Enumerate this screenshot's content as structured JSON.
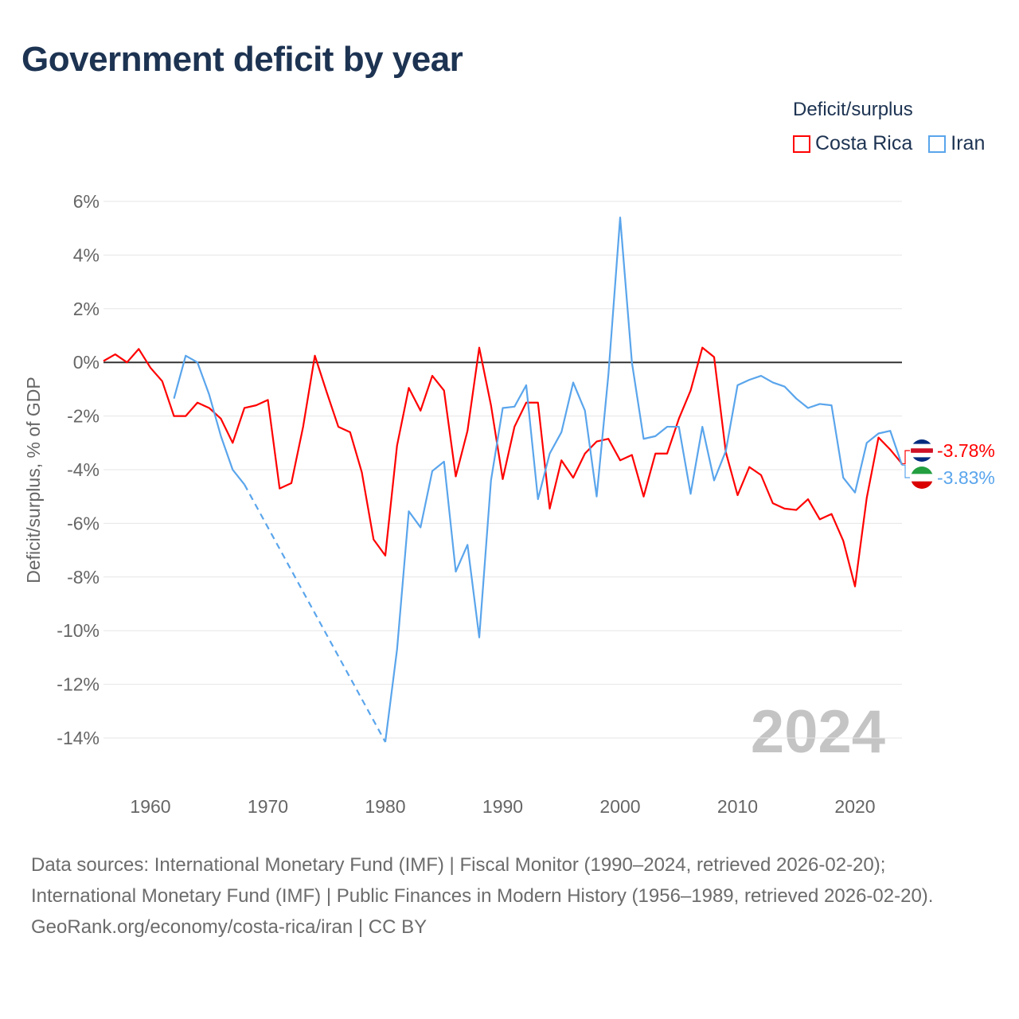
{
  "title": "Government deficit by year",
  "legend": {
    "title": "Deficit/surplus",
    "items": [
      {
        "name": "Costa Rica",
        "color": "#ff0000"
      },
      {
        "name": "Iran",
        "color": "#5aa5ec"
      }
    ]
  },
  "footer": {
    "sources": "Data sources: International Monetary Fund (IMF) | Fiscal Monitor (1990–2024, retrieved 2026-02-20); International Monetary Fund (IMF) | Public Finances in Modern History (1956–1989, retrieved 2026-02-20).",
    "credit": "GeoRank.org/economy/costa-rica/iran | CC BY"
  },
  "chart_data": {
    "type": "line",
    "title": "Government deficit by year",
    "ylabel": "Deficit/surplus, % of GDP",
    "xlabel": "",
    "year_watermark": "2024",
    "xlim": [
      1956,
      2024
    ],
    "ylim": [
      -14,
      6
    ],
    "x_ticks": [
      "1960",
      "1970",
      "1980",
      "1990",
      "2000",
      "2010",
      "2020"
    ],
    "y_ticks": [
      "6%",
      "4%",
      "2%",
      "0%",
      "-2%",
      "-4%",
      "-6%",
      "-8%",
      "-10%",
      "-12%",
      "-14%"
    ],
    "grid": true,
    "start_year": 1956,
    "series": [
      {
        "name": "Costa Rica",
        "color": "#ff0000",
        "end_label": "-3.78%",
        "flag": [
          "#002b7f",
          "#ffffff",
          "#ce1126",
          "#ffffff",
          "#002b7f"
        ],
        "values": [
          0.05,
          0.3,
          0.0,
          0.5,
          -0.2,
          -0.7,
          -2.0,
          -2.0,
          -1.5,
          -1.7,
          -2.1,
          -3.0,
          -1.7,
          -1.6,
          -1.4,
          -4.7,
          -4.5,
          -2.4,
          0.25,
          -1.1,
          -2.4,
          -2.6,
          -4.1,
          -6.6,
          -7.2,
          -3.1,
          -0.95,
          -1.8,
          -0.5,
          -1.05,
          -4.25,
          -2.55,
          0.55,
          -1.6,
          -4.35,
          -2.4,
          -1.5,
          -1.5,
          -5.45,
          -3.65,
          -4.3,
          -3.4,
          -2.95,
          -2.85,
          -3.65,
          -3.45,
          -5.0,
          -3.4,
          -3.4,
          -2.1,
          -1.05,
          0.55,
          0.2,
          -3.35,
          -4.95,
          -3.9,
          -4.2,
          -5.25,
          -5.45,
          -5.5,
          -5.1,
          -5.85,
          -5.65,
          -6.65,
          -8.35,
          -5.05,
          -2.8,
          -3.25,
          -3.78
        ]
      },
      {
        "name": "Iran",
        "color": "#5aa5ec",
        "end_label": "-3.83%",
        "flag": [
          "#239f40",
          "#ffffff",
          "#da0000"
        ],
        "values": [
          null,
          null,
          null,
          null,
          null,
          null,
          -1.35,
          0.25,
          0.0,
          -1.2,
          -2.75,
          -4.0,
          -4.55,
          null,
          null,
          null,
          null,
          null,
          null,
          null,
          null,
          null,
          null,
          null,
          -14.15,
          -10.7,
          -5.55,
          -6.15,
          -4.05,
          -3.7,
          -7.8,
          -6.8,
          -10.25,
          -4.4,
          -1.7,
          -1.65,
          -0.85,
          -5.1,
          -3.4,
          -2.6,
          -0.75,
          -1.8,
          -5.0,
          -0.45,
          5.4,
          0.0,
          -2.85,
          -2.75,
          -2.4,
          -2.4,
          -4.9,
          -2.4,
          -4.4,
          -3.3,
          -0.85,
          -0.65,
          -0.5,
          -0.75,
          -0.9,
          -1.35,
          -1.7,
          -1.55,
          -1.6,
          -4.3,
          -4.85,
          -3.0,
          -2.65,
          -2.55,
          -3.83
        ]
      }
    ]
  }
}
